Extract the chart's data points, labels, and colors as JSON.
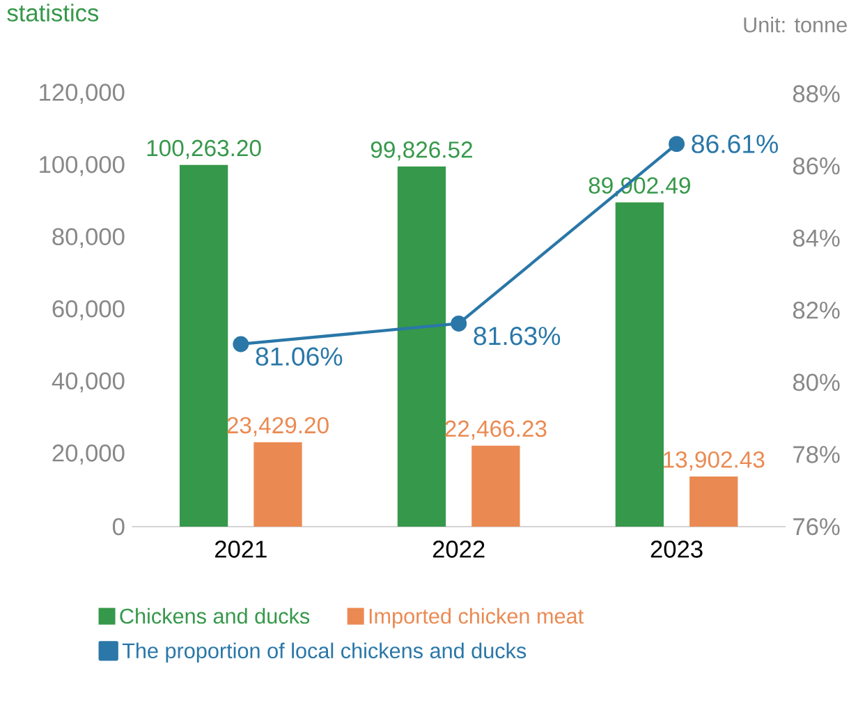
{
  "chart_data": {
    "type": "bar",
    "title": "statistics",
    "annotations": [
      "Unit: tonne"
    ],
    "categories": [
      "2021",
      "2022",
      "2023"
    ],
    "series": [
      {
        "name": "Chickens and ducks",
        "color": "#36984a",
        "values": [
          100263.2,
          99826.52,
          89902.49
        ],
        "value_labels": [
          "100,263.20",
          "99,826.52",
          "89,902.49"
        ]
      },
      {
        "name": "Imported chicken meat",
        "color": "#ea8a52",
        "values": [
          23429.2,
          22466.23,
          13902.43
        ],
        "value_labels": [
          "23,429.20",
          "22,466.23",
          "13,902.43"
        ]
      },
      {
        "name": "The proportion of local chickens and ducks",
        "type": "line",
        "axis": "y2",
        "marker": "circle",
        "color": "#2a77a8",
        "values": [
          81.06,
          81.63,
          86.61
        ],
        "value_labels": [
          "81.06%",
          "81.63%",
          "86.61%"
        ]
      }
    ],
    "ylim": [
      0,
      120000
    ],
    "yticks": [
      {
        "value": 0,
        "label": "0"
      },
      {
        "value": 20000,
        "label": "20,000"
      },
      {
        "value": 40000,
        "label": "40,000"
      },
      {
        "value": 60000,
        "label": "60,000"
      },
      {
        "value": 80000,
        "label": "80,000"
      },
      {
        "value": 100000,
        "label": "100,000"
      },
      {
        "value": 120000,
        "label": "120,000"
      }
    ],
    "y2lim": [
      76,
      88
    ],
    "y2ticks": [
      {
        "value": 76,
        "label": "76%"
      },
      {
        "value": 78,
        "label": "78%"
      },
      {
        "value": 80,
        "label": "80%"
      },
      {
        "value": 82,
        "label": "82%"
      },
      {
        "value": 84,
        "label": "84%"
      },
      {
        "value": 86,
        "label": "86%"
      },
      {
        "value": 88,
        "label": "88%"
      }
    ],
    "legend": "bottom",
    "grid": false
  }
}
